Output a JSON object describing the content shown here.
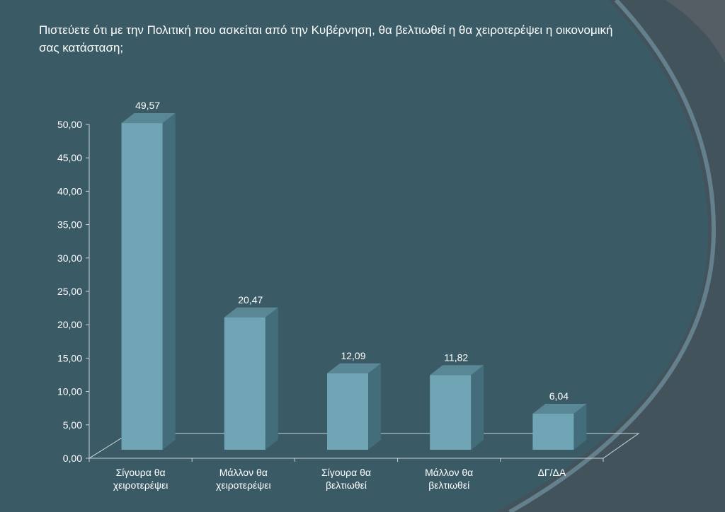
{
  "question": "Πιστεύετε ότι με την Πολιτική που ασκείται από την Κυβέρνηση, θα βελτιωθεί η θα χειροτερέψει η οικονομική σας κατάσταση;",
  "colors": {
    "background": "#3a5a66",
    "bar_front": "#70a5b6",
    "bar_side": "#436d7b",
    "bar_top": "#5a8795",
    "text": "#ffffff"
  },
  "chart_data": {
    "type": "bar",
    "title": "Πιστεύετε ότι με την Πολιτική που ασκείται από την Κυβέρνηση, θα βελτιωθεί η θα χειροτερέψει η οικονομική σας κατάσταση;",
    "categories": [
      [
        "Σίγουρα θα",
        "χειροτερέψει"
      ],
      [
        "Μάλλον θα",
        "χειροτερέψει"
      ],
      [
        "Σίγουρα θα",
        "βελτιωθεί"
      ],
      [
        "Μάλλον θα",
        "βελτιωθεί"
      ],
      [
        "ΔΓ/ΔΑ"
      ]
    ],
    "values": [
      49.57,
      20.47,
      12.09,
      11.82,
      6.04
    ],
    "data_labels": [
      "49,57",
      "20,47",
      "12,09",
      "11,82",
      "6,04"
    ],
    "ylim": [
      0,
      50
    ],
    "yticks": [
      "0,00",
      "5,00",
      "10,00",
      "15,00",
      "20,00",
      "25,00",
      "30,00",
      "35,00",
      "40,00",
      "45,00",
      "50,00"
    ],
    "xlabel": "",
    "ylabel": "",
    "grid": false,
    "legend": "none",
    "style": "3d-columns"
  }
}
